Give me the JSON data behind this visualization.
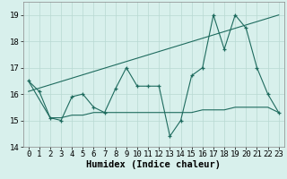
{
  "xlabel": "Humidex (Indice chaleur)",
  "xlim": [
    -0.5,
    23.5
  ],
  "ylim": [
    14,
    19.5
  ],
  "yticks": [
    14,
    15,
    16,
    17,
    18,
    19
  ],
  "xticks": [
    0,
    1,
    2,
    3,
    4,
    5,
    6,
    7,
    8,
    9,
    10,
    11,
    12,
    13,
    14,
    15,
    16,
    17,
    18,
    19,
    20,
    21,
    22,
    23
  ],
  "line1_x": [
    0,
    1,
    2,
    3,
    4,
    5,
    6,
    7,
    8,
    9,
    10,
    11,
    12,
    13,
    14,
    15,
    16,
    17,
    18,
    19,
    20,
    21,
    22,
    23
  ],
  "line1_y": [
    16.5,
    16.1,
    15.1,
    15.0,
    15.9,
    16.0,
    15.5,
    15.3,
    16.2,
    17.0,
    16.3,
    16.3,
    16.3,
    14.4,
    15.0,
    16.7,
    17.0,
    19.0,
    17.7,
    19.0,
    18.5,
    17.0,
    16.0,
    15.3
  ],
  "line2_x": [
    0,
    2,
    3,
    4,
    5,
    6,
    7,
    8,
    9,
    10,
    11,
    12,
    13,
    14,
    15,
    16,
    17,
    18,
    19,
    20,
    21,
    22,
    23
  ],
  "line2_y": [
    16.5,
    15.1,
    15.1,
    15.2,
    15.2,
    15.3,
    15.3,
    15.3,
    15.3,
    15.3,
    15.3,
    15.3,
    15.3,
    15.3,
    15.3,
    15.4,
    15.4,
    15.4,
    15.5,
    15.5,
    15.5,
    15.5,
    15.3
  ],
  "line3_x": [
    0,
    23
  ],
  "line3_y": [
    16.1,
    19.0
  ],
  "line_color": "#1e6b5e",
  "bg_color": "#d8f0ec",
  "grid_color": "#b8d8d2",
  "tick_fontsize": 6.5,
  "xlabel_fontsize": 7.5
}
